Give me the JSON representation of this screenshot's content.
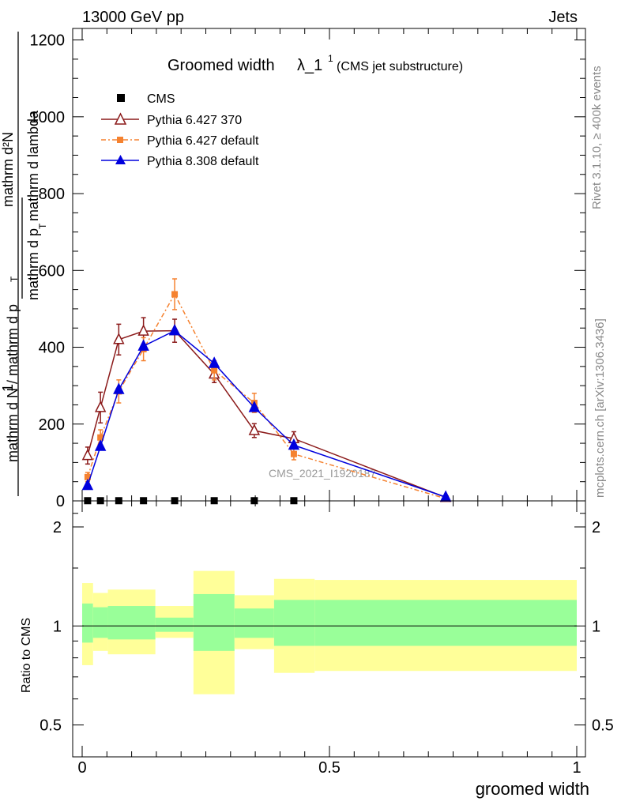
{
  "header": {
    "left": "13000 GeV pp",
    "right": "Jets"
  },
  "side_text": {
    "rivet": "Rivet 3.1.10, ≥ 400k events",
    "mcplots": "mcplots.cern.ch [arXiv:1306.3436]"
  },
  "watermark": "CMS_2021_I1920187",
  "chart_data": [
    {
      "type": "line",
      "title": "Groomed width",
      "title_symbol": "λ_1",
      "title_superscript": "1",
      "subtitle": "(CMS jet substructure)",
      "ylabel": "1 / mathrm d N / mathrm d p_T mathrm d^2N / mathrm d p_T mathrm d lambda",
      "ylabel_parts": {
        "numerator_left": "1",
        "denominator_left": "mathrm d N / mathrm d p",
        "numerator_right": "mathrm d²N",
        "denominator_right": "mathrm d p",
        "denominator_right_tail": " mathrm d lambda",
        "sub_t": "T"
      },
      "xlim": [
        0,
        1
      ],
      "ylim": [
        0,
        1230
      ],
      "yticks": [
        0,
        200,
        400,
        600,
        800,
        1000,
        1200
      ],
      "legend_position": "top-left",
      "series": [
        {
          "name": "CMS",
          "color": "#000000",
          "marker": "square",
          "x": [
            0.011,
            0.037,
            0.074,
            0.124,
            0.187,
            0.267,
            0.348,
            0.428
          ],
          "values": [
            0.5,
            0.5,
            0.5,
            0.5,
            0.5,
            0.5,
            0.5,
            0.5
          ]
        },
        {
          "name": "Pythia 6.427 370",
          "color": "#8b1a1a",
          "marker": "open-triangle",
          "x": [
            0.011,
            0.037,
            0.074,
            0.124,
            0.187,
            0.267,
            0.348,
            0.428,
            0.735
          ],
          "values": [
            118,
            243,
            420,
            442,
            443,
            330,
            183,
            162,
            9
          ],
          "errors": [
            22,
            40,
            40,
            35,
            30,
            22,
            18,
            18,
            3
          ]
        },
        {
          "name": "Pythia 6.427 default",
          "color": "#f58230",
          "marker": "square",
          "dashed": true,
          "x": [
            0.011,
            0.037,
            0.074,
            0.124,
            0.187,
            0.267,
            0.348,
            0.428,
            0.735
          ],
          "values": [
            62,
            165,
            285,
            395,
            538,
            340,
            255,
            122,
            6
          ],
          "errors": [
            12,
            20,
            30,
            30,
            40,
            25,
            25,
            15,
            2
          ]
        },
        {
          "name": "Pythia 8.308 default",
          "color": "#0000dd",
          "marker": "filled-triangle",
          "x": [
            0.011,
            0.037,
            0.074,
            0.124,
            0.187,
            0.267,
            0.348,
            0.428,
            0.735
          ],
          "values": [
            40,
            142,
            290,
            403,
            443,
            358,
            243,
            145,
            10
          ]
        }
      ]
    },
    {
      "type": "area",
      "ylabel": "Ratio to CMS",
      "xlabel": "groomed width",
      "yscale": "log",
      "ylim": [
        0.4,
        2.4
      ],
      "ytick_labels": [
        "0.5",
        "1",
        "2"
      ],
      "xticks": [
        0,
        0.5,
        1
      ],
      "xtick_labels": [
        "0",
        "0.5",
        "1"
      ],
      "reference_line": 1,
      "bands": [
        {
          "x0": 0.0,
          "x1": 0.022,
          "inner": [
            0.89,
            1.17
          ],
          "outer": [
            0.76,
            1.35
          ]
        },
        {
          "x0": 0.022,
          "x1": 0.052,
          "inner": [
            0.92,
            1.14
          ],
          "outer": [
            0.84,
            1.26
          ]
        },
        {
          "x0": 0.052,
          "x1": 0.148,
          "inner": [
            0.91,
            1.15
          ],
          "outer": [
            0.82,
            1.29
          ]
        },
        {
          "x0": 0.148,
          "x1": 0.225,
          "inner": [
            0.96,
            1.06
          ],
          "outer": [
            0.92,
            1.15
          ]
        },
        {
          "x0": 0.225,
          "x1": 0.308,
          "inner": [
            0.84,
            1.25
          ],
          "outer": [
            0.62,
            1.47
          ]
        },
        {
          "x0": 0.308,
          "x1": 0.388,
          "inner": [
            0.92,
            1.13
          ],
          "outer": [
            0.85,
            1.24
          ]
        },
        {
          "x0": 0.388,
          "x1": 0.47,
          "inner": [
            0.87,
            1.2
          ],
          "outer": [
            0.72,
            1.39
          ]
        },
        {
          "x0": 0.47,
          "x1": 1.0,
          "inner": [
            0.87,
            1.2
          ],
          "outer": [
            0.73,
            1.38
          ]
        }
      ]
    }
  ]
}
